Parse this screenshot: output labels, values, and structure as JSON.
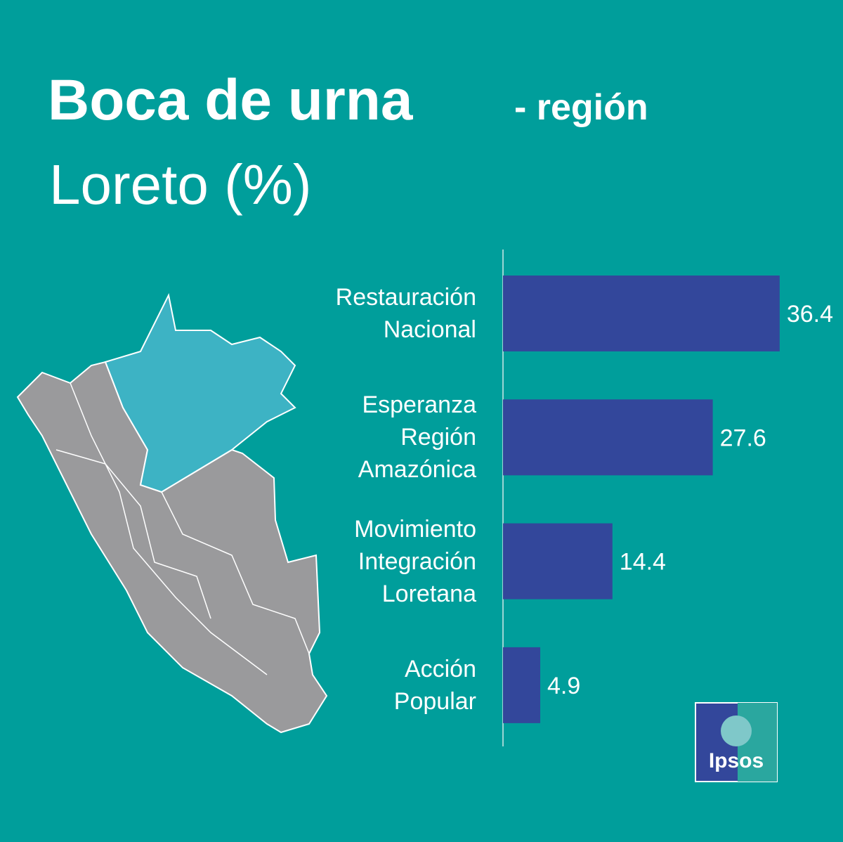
{
  "chart_data": {
    "type": "bar",
    "orientation": "horizontal",
    "title": "Boca de urna",
    "title_suffix": "- región",
    "subtitle": "Loreto (%)",
    "categories": [
      "Restauración\nNacional",
      "Esperanza\nRegión\nAmazónica",
      "Movimiento\nIntegración\nLoretana",
      "Acción\nPopular"
    ],
    "values": [
      36.4,
      27.6,
      14.4,
      4.9
    ],
    "color": "#33479b",
    "logo": "Ipsos"
  }
}
